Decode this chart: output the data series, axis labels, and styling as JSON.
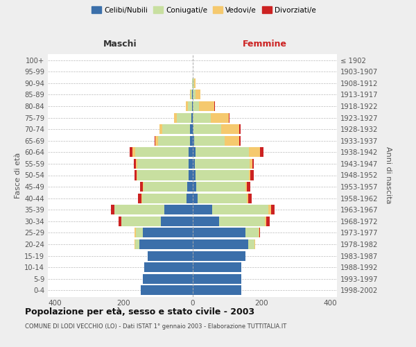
{
  "age_groups": [
    "0-4",
    "5-9",
    "10-14",
    "15-19",
    "20-24",
    "25-29",
    "30-34",
    "35-39",
    "40-44",
    "45-49",
    "50-54",
    "55-59",
    "60-64",
    "65-69",
    "70-74",
    "75-79",
    "80-84",
    "85-89",
    "90-94",
    "95-99",
    "100+"
  ],
  "birth_years": [
    "1998-2002",
    "1993-1997",
    "1988-1992",
    "1983-1987",
    "1978-1982",
    "1973-1977",
    "1968-1972",
    "1963-1967",
    "1958-1962",
    "1953-1957",
    "1948-1952",
    "1943-1947",
    "1938-1942",
    "1933-1937",
    "1928-1932",
    "1923-1927",
    "1918-1922",
    "1913-1917",
    "1908-1912",
    "1903-1907",
    "≤ 1902"
  ],
  "maschi": {
    "celibi": [
      150,
      145,
      140,
      130,
      155,
      145,
      92,
      82,
      18,
      15,
      12,
      12,
      12,
      8,
      8,
      4,
      2,
      1,
      0,
      0,
      0
    ],
    "coniugati": [
      0,
      0,
      0,
      0,
      12,
      20,
      115,
      145,
      128,
      128,
      148,
      148,
      155,
      92,
      80,
      42,
      12,
      4,
      1,
      0,
      0
    ],
    "vedovi": [
      0,
      0,
      0,
      0,
      2,
      4,
      0,
      0,
      2,
      2,
      3,
      4,
      8,
      8,
      8,
      8,
      5,
      2,
      0,
      0,
      0
    ],
    "divorziati": [
      0,
      0,
      0,
      0,
      0,
      0,
      8,
      10,
      10,
      8,
      5,
      6,
      8,
      2,
      0,
      0,
      0,
      0,
      0,
      0,
      0
    ]
  },
  "femmine": {
    "nubili": [
      142,
      142,
      142,
      155,
      162,
      155,
      78,
      58,
      16,
      12,
      10,
      8,
      10,
      6,
      4,
      2,
      2,
      1,
      1,
      0,
      0
    ],
    "coniugate": [
      0,
      0,
      0,
      0,
      18,
      38,
      132,
      162,
      142,
      142,
      155,
      158,
      155,
      88,
      80,
      52,
      18,
      8,
      4,
      1,
      0
    ],
    "vedove": [
      0,
      0,
      0,
      0,
      2,
      2,
      5,
      8,
      4,
      4,
      4,
      8,
      32,
      42,
      52,
      52,
      44,
      14,
      5,
      0,
      0
    ],
    "divorziate": [
      0,
      0,
      0,
      0,
      0,
      2,
      10,
      10,
      10,
      10,
      10,
      5,
      10,
      3,
      5,
      2,
      2,
      0,
      0,
      0,
      0
    ]
  },
  "colors": {
    "celibi": "#3b6faa",
    "coniugati": "#c8dfa0",
    "vedovi": "#f5c96e",
    "divorziati": "#cc2222"
  },
  "legend_labels": [
    "Celibi/Nubili",
    "Coniugati/e",
    "Vedovi/e",
    "Divorziati/e"
  ],
  "xlim": 420,
  "title": "Popolazione per età, sesso e stato civile - 2003",
  "subtitle": "COMUNE DI LODI VECCHIO (LO) - Dati ISTAT 1° gennaio 2003 - Elaborazione TUTTITALIA.IT",
  "xlabel_left": "Maschi",
  "xlabel_right": "Femmine",
  "ylabel_left": "Fasce di età",
  "ylabel_right": "Anni di nascita",
  "bg_color": "#eeeeee",
  "plot_bg": "#ffffff"
}
